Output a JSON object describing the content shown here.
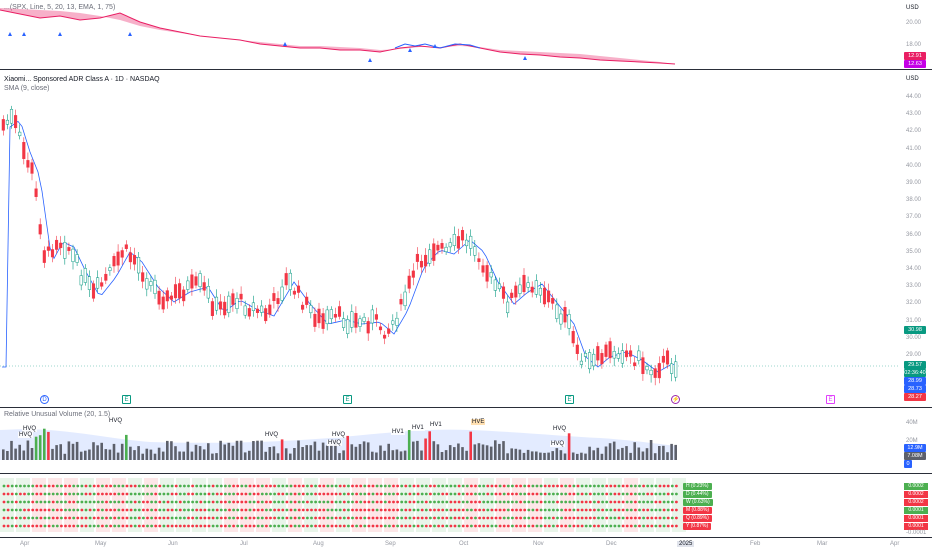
{
  "top_pane": {
    "indicator_label": "...(SPX, Line, 5, 20, 13, EMA, 1, 75)",
    "currency": "USD",
    "axis_labels": [
      "20.00",
      "18.00"
    ],
    "price_tags": [
      {
        "value": "12.91",
        "color": "#e91e63"
      },
      {
        "value": "12.63",
        "color": "#c400e6"
      }
    ]
  },
  "main_pane": {
    "title": "Xiaomi... Sponsored ADR Class A · 1D · NASDAQ",
    "sma_label": "SMA (9, close)",
    "currency": "USD",
    "axis_labels": [
      "44.00",
      "43.00",
      "42.00",
      "41.00",
      "40.00",
      "39.00",
      "38.00",
      "37.00",
      "36.00",
      "35.00",
      "34.00",
      "33.00",
      "32.00",
      "31.00",
      "30.00",
      "29.00"
    ],
    "price_tags": [
      {
        "value": "30.98",
        "color": "#089981"
      },
      {
        "value": "29.57",
        "color": "#089981"
      },
      {
        "value": "02:36:40",
        "color": "#089981"
      },
      {
        "value": "28.99",
        "color": "#2962ff"
      },
      {
        "value": "28.73",
        "color": "#2962ff"
      },
      {
        "value": "28.27",
        "color": "#f23645"
      }
    ],
    "events": [
      "D",
      "E",
      "E",
      "E",
      "⚡",
      "E"
    ]
  },
  "volume_pane": {
    "label": "Relative Unusual Volume (20, 1.5)",
    "axis_labels": [
      "40M",
      "20M"
    ],
    "price_tags": [
      {
        "value": "12.9M",
        "color": "#2962ff"
      },
      {
        "value": "7.08M",
        "color": "#5d606b"
      },
      {
        "value": "0",
        "color": "#2962ff"
      }
    ],
    "hv_labels": [
      "HVQ",
      "HVQ",
      "HVQ",
      "HVQ",
      "HVQ",
      "HVQ",
      "HV1",
      "HV1",
      "HV1",
      "HVE",
      "HVQ",
      "HVQ"
    ]
  },
  "dots_pane": {
    "legend": [
      {
        "label": "H (0.23%)",
        "color": "#4caf50"
      },
      {
        "label": "D (0.44%)",
        "color": "#4caf50"
      },
      {
        "label": "W (0.63%)",
        "color": "#4caf50"
      },
      {
        "label": "M (0.88%)",
        "color": "#f23645"
      },
      {
        "label": "Q (0.89%)",
        "color": "#f23645"
      },
      {
        "label": "Y (0.87%)",
        "color": "#f23645"
      }
    ],
    "values": [
      {
        "value": "0.0002",
        "color": "#4caf50"
      },
      {
        "value": "0.0002",
        "color": "#f23645"
      },
      {
        "value": "0.0002",
        "color": "#f23645"
      },
      {
        "value": "0.0001",
        "color": "#4caf50"
      },
      {
        "value": "0.0001",
        "color": "#f23645"
      },
      {
        "value": "0.0001",
        "color": "#f23645"
      }
    ],
    "axis_bottom": "-0.0001"
  },
  "time_axis": [
    "Apr",
    "May",
    "Jun",
    "Jul",
    "Aug",
    "Sep",
    "Oct",
    "Nov",
    "Dec",
    "2025",
    "Feb",
    "Mar",
    "Apr"
  ]
}
